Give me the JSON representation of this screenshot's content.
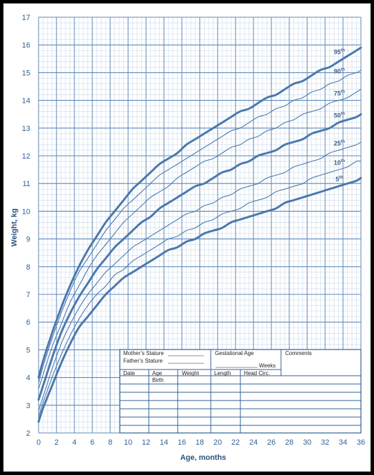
{
  "chart_data": {
    "type": "line",
    "xlabel": "Age, months",
    "ylabel": "Weight, kg",
    "xlim": [
      0,
      36
    ],
    "ylim": [
      2,
      17
    ],
    "x_ticks": [
      "0",
      "2",
      "4",
      "6",
      "8",
      "10",
      "12",
      "14",
      "16",
      "18",
      "20",
      "22",
      "24",
      "26",
      "28",
      "30",
      "32",
      "34",
      "36"
    ],
    "y_ticks": [
      "2",
      "3",
      "4",
      "5",
      "6",
      "7",
      "8",
      "9",
      "10",
      "11",
      "12",
      "13",
      "14",
      "15",
      "16",
      "17"
    ],
    "grid": true,
    "x": [
      0,
      0.5,
      1.5,
      2.5,
      3.5,
      4.5,
      5.5,
      6.5,
      7.5,
      8.5,
      9.5,
      10.5,
      11.5,
      12.5,
      13.5,
      14.5,
      15.5,
      16.5,
      17.5,
      18.5,
      19.5,
      20.5,
      21.5,
      22.5,
      23.5,
      24.5,
      25.5,
      26.5,
      27.5,
      28.5,
      29.5,
      30.5,
      31.5,
      32.5,
      33.5,
      34.5,
      35.5,
      36
    ],
    "series": [
      {
        "name": "95th",
        "label_main": "95",
        "label_sup": "th",
        "bold": true,
        "values": [
          4.0,
          4.6,
          5.6,
          6.5,
          7.3,
          8.0,
          8.6,
          9.1,
          9.6,
          10.0,
          10.4,
          10.8,
          11.1,
          11.4,
          11.7,
          11.9,
          12.1,
          12.4,
          12.6,
          12.8,
          13.0,
          13.2,
          13.4,
          13.6,
          13.7,
          13.9,
          14.1,
          14.2,
          14.4,
          14.6,
          14.7,
          14.9,
          15.1,
          15.2,
          15.4,
          15.6,
          15.8,
          15.9
        ]
      },
      {
        "name": "90th",
        "label_main": "90",
        "label_sup": "th",
        "bold": false,
        "values": [
          3.8,
          4.4,
          5.4,
          6.3,
          7.1,
          7.8,
          8.3,
          8.8,
          9.3,
          9.7,
          10.1,
          10.4,
          10.7,
          11.0,
          11.3,
          11.5,
          11.7,
          11.9,
          12.1,
          12.3,
          12.5,
          12.7,
          12.9,
          13.0,
          13.2,
          13.4,
          13.5,
          13.7,
          13.8,
          14.0,
          14.1,
          14.3,
          14.4,
          14.6,
          14.7,
          14.9,
          15.0,
          15.1
        ]
      },
      {
        "name": "75th",
        "label_main": "75",
        "label_sup": "th",
        "bold": false,
        "values": [
          3.6,
          4.1,
          5.1,
          5.9,
          6.7,
          7.3,
          7.9,
          8.4,
          8.8,
          9.2,
          9.6,
          9.9,
          10.2,
          10.5,
          10.7,
          10.9,
          11.2,
          11.4,
          11.6,
          11.8,
          11.9,
          12.1,
          12.3,
          12.4,
          12.6,
          12.7,
          12.9,
          13.0,
          13.2,
          13.3,
          13.5,
          13.6,
          13.7,
          13.9,
          14.0,
          14.1,
          14.3,
          14.4
        ]
      },
      {
        "name": "50th",
        "label_main": "50",
        "label_sup": "th",
        "bold": true,
        "values": [
          3.2,
          3.7,
          4.7,
          5.6,
          6.3,
          6.9,
          7.4,
          7.9,
          8.3,
          8.7,
          9.0,
          9.3,
          9.6,
          9.8,
          10.1,
          10.3,
          10.5,
          10.7,
          10.9,
          11.0,
          11.2,
          11.4,
          11.5,
          11.7,
          11.8,
          12.0,
          12.1,
          12.2,
          12.4,
          12.5,
          12.6,
          12.8,
          12.9,
          13.0,
          13.2,
          13.3,
          13.4,
          13.5
        ]
      },
      {
        "name": "25th",
        "label_main": "25",
        "label_sup": "th",
        "bold": false,
        "values": [
          2.8,
          3.3,
          4.3,
          5.2,
          5.9,
          6.5,
          7.0,
          7.4,
          7.8,
          8.1,
          8.4,
          8.7,
          8.9,
          9.1,
          9.3,
          9.5,
          9.7,
          9.9,
          10.0,
          10.2,
          10.3,
          10.5,
          10.6,
          10.8,
          10.9,
          11.0,
          11.2,
          11.3,
          11.4,
          11.6,
          11.7,
          11.8,
          11.9,
          12.1,
          12.2,
          12.3,
          12.4,
          12.5
        ]
      },
      {
        "name": "10th",
        "label_main": "10",
        "label_sup": "th",
        "bold": false,
        "values": [
          2.6,
          3.1,
          4.0,
          4.8,
          5.5,
          6.1,
          6.6,
          7.0,
          7.3,
          7.7,
          7.9,
          8.2,
          8.4,
          8.6,
          8.8,
          9.0,
          9.1,
          9.3,
          9.4,
          9.6,
          9.7,
          9.9,
          10.0,
          10.1,
          10.3,
          10.4,
          10.5,
          10.7,
          10.8,
          10.9,
          11.0,
          11.2,
          11.3,
          11.4,
          11.5,
          11.6,
          11.8,
          11.8
        ]
      },
      {
        "name": "5th",
        "label_main": "5",
        "label_sup": "th",
        "bold": true,
        "values": [
          2.4,
          2.9,
          3.7,
          4.5,
          5.2,
          5.8,
          6.2,
          6.6,
          7.0,
          7.3,
          7.6,
          7.8,
          8.0,
          8.2,
          8.4,
          8.6,
          8.7,
          8.9,
          9.0,
          9.2,
          9.3,
          9.4,
          9.6,
          9.7,
          9.8,
          9.9,
          10.0,
          10.1,
          10.3,
          10.4,
          10.5,
          10.6,
          10.7,
          10.8,
          10.9,
          11.0,
          11.1,
          11.2
        ]
      }
    ]
  },
  "table": {
    "mothers_stature": "Mother’s Stature",
    "fathers_stature": "Father’s Stature",
    "gestational_age": "Gestational Age",
    "weeks": "Weeks",
    "comments": "Comments",
    "headers": [
      "Date",
      "Age",
      "Weight",
      "Length",
      "Head Circ."
    ],
    "birth": "Birth"
  },
  "colors": {
    "background": "#000000",
    "paper": "#ffffff",
    "grid_minor": "#c9d9ea",
    "grid_major": "#5b86b8",
    "curve": "#4a78ad",
    "text": "#2f5f96"
  }
}
